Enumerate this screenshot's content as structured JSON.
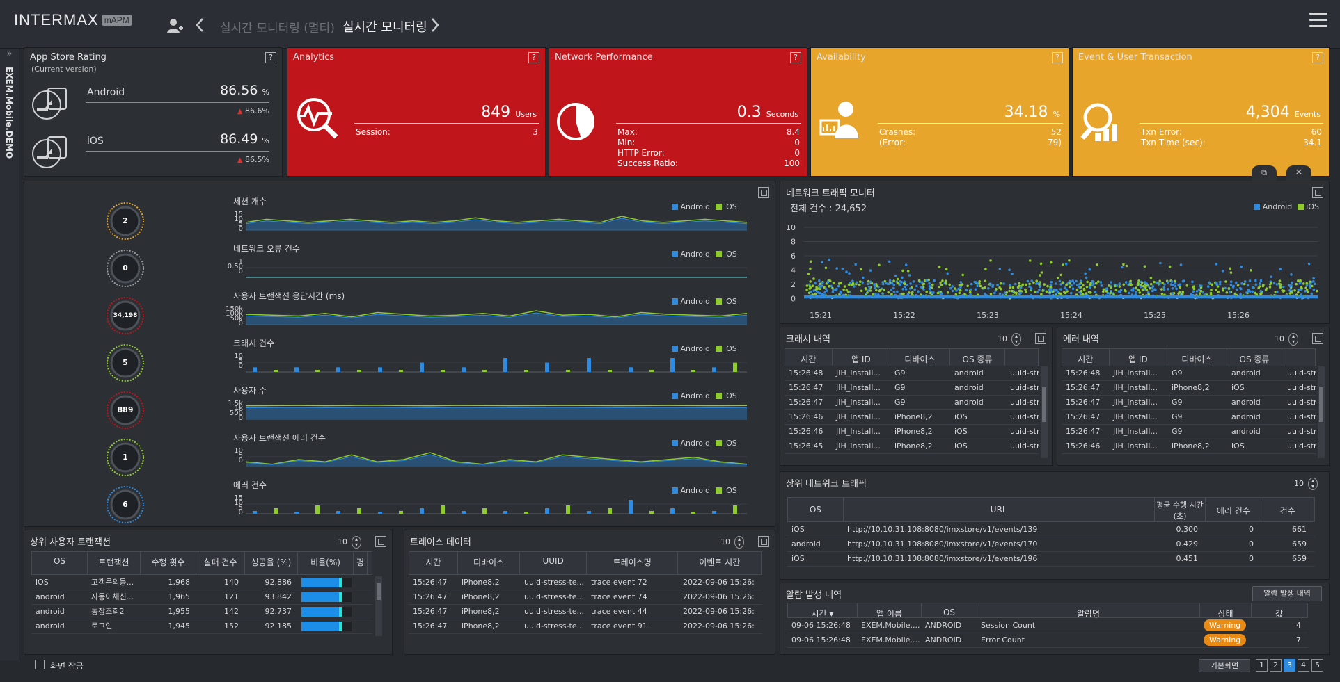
{
  "app": {
    "logo_text": "INTERMAX",
    "logo_badge": "mAPM",
    "prev_title": "실시간 모니터링 (멀티)",
    "current_title": "실시간 모니터링",
    "side_label": "EXEM.Mobile.DEMO"
  },
  "app_store": {
    "title": "App Store Rating",
    "subtitle": "(Current version)",
    "android": {
      "label": "Android",
      "value": "86.56",
      "unit": "%",
      "prev": "86.6%"
    },
    "ios": {
      "label": "iOS",
      "value": "86.49",
      "unit": "%",
      "prev": "86.5%"
    }
  },
  "analytics": {
    "title": "Analytics",
    "value": "849",
    "unit": "Users",
    "rows": [
      {
        "k": "Session:",
        "v": "3"
      }
    ]
  },
  "network_perf": {
    "title": "Network Performance",
    "value": "0.3",
    "unit": "Seconds",
    "rows": [
      {
        "k": "Max:",
        "v": "8.4"
      },
      {
        "k": "Min:",
        "v": "0"
      },
      {
        "k": "HTTP Error:",
        "v": "0"
      },
      {
        "k": "Success Ratio:",
        "v": "100"
      }
    ]
  },
  "availability": {
    "title": "Availability",
    "value": "34.18",
    "unit": "%",
    "rows": [
      {
        "k": "Crashes:",
        "v": "52"
      },
      {
        "k": "(Error:",
        "v": "79)"
      }
    ]
  },
  "event_txn": {
    "title": "Event & User Transaction",
    "value": "4,304",
    "unit": "Events",
    "rows": [
      {
        "k": "Txn Error:",
        "v": "60"
      },
      {
        "k": "Txn Time (sec):",
        "v": "34.1"
      }
    ]
  },
  "help_label": "?",
  "legend": {
    "android": "Android",
    "ios": "iOS"
  },
  "gauges": [
    "2",
    "0",
    "34,198",
    "5",
    "889",
    "1",
    "6"
  ],
  "colors": {
    "android": "#2f8bdf",
    "ios": "#8fcb2e",
    "red": "#c0151b",
    "yellow": "#e7a52b",
    "warning": "#e98a14"
  },
  "mini_charts": [
    {
      "title": "세션 개수",
      "ticks": [
        "15",
        "10",
        "5",
        "0"
      ]
    },
    {
      "title": "네트워크 오류 건수",
      "ticks": [
        "1",
        "0.50",
        "0"
      ]
    },
    {
      "title": "사용자 트랜잭션 응답시간 (ms)",
      "ticks": [
        "150k",
        "100k",
        "50k",
        "0"
      ]
    },
    {
      "title": "크래시 건수",
      "ticks": [
        "10",
        "5",
        "0"
      ]
    },
    {
      "title": "사용자 수",
      "ticks": [
        "1.5k",
        "1k",
        "500",
        "0"
      ]
    },
    {
      "title": "사용자 트랜잭션 에러 건수",
      "ticks": [
        "10",
        "5",
        "0"
      ]
    },
    {
      "title": "에러 건수",
      "ticks": [
        "15",
        "10",
        "5",
        "0"
      ]
    }
  ],
  "network_traffic": {
    "title": "네트워크 트래픽 모니터",
    "total": "전체 건수 : 24,652",
    "y_ticks": [
      "10",
      "8",
      "6",
      "4",
      "2",
      "0"
    ],
    "x_ticks": [
      "15:21",
      "15:22",
      "15:23",
      "15:24",
      "15:25",
      "15:26"
    ]
  },
  "crash": {
    "title": "크래시 내역",
    "page_size": "10",
    "headers": [
      "시간",
      "앱 ID",
      "디바이스",
      "OS 종류",
      ""
    ],
    "rows": [
      [
        "15:26:48",
        "JIH_Install...",
        "G9",
        "android",
        "uuid-str"
      ],
      [
        "15:26:47",
        "JIH_Install...",
        "G9",
        "android",
        "uuid-str"
      ],
      [
        "15:26:47",
        "JIH_Install...",
        "G9",
        "android",
        "uuid-str"
      ],
      [
        "15:26:46",
        "JIH_Install...",
        "iPhone8,2",
        "iOS",
        "uuid-str"
      ],
      [
        "15:26:46",
        "JIH_Install...",
        "iPhone8,2",
        "iOS",
        "uuid-str"
      ],
      [
        "15:26:45",
        "JIH_Install...",
        "iPhone8,2",
        "iOS",
        "uuid-str"
      ]
    ]
  },
  "error": {
    "title": "에러 내역",
    "page_size": "10",
    "headers": [
      "시간",
      "앱 ID",
      "디바이스",
      "OS 종류",
      ""
    ],
    "rows": [
      [
        "15:26:48",
        "JIH_Install...",
        "G9",
        "android",
        "uuid-str"
      ],
      [
        "15:26:47",
        "JIH_Install...",
        "iPhone8,2",
        "iOS",
        "uuid-str"
      ],
      [
        "15:26:47",
        "JIH_Install...",
        "G9",
        "android",
        "uuid-str"
      ],
      [
        "15:26:47",
        "JIH_Install...",
        "G9",
        "android",
        "uuid-str"
      ],
      [
        "15:26:47",
        "JIH_Install...",
        "G9",
        "android",
        "uuid-str"
      ],
      [
        "15:26:46",
        "JIH_Install...",
        "iPhone8,2",
        "iOS",
        "uuid-str"
      ]
    ]
  },
  "top_network": {
    "title": "상위 네트워크 트래픽",
    "page_size": "10",
    "headers": [
      "OS",
      "URL",
      "평균 수행 시간 (초)",
      "에러 건수",
      "건수"
    ],
    "rows": [
      [
        "iOS",
        "http://10.10.31.108:8080/imxstore/v1/events/139",
        "0.300",
        "0",
        "661"
      ],
      [
        "android",
        "http://10.10.31.108:8080/imxstore/v1/events/170",
        "0.429",
        "0",
        "659"
      ],
      [
        "iOS",
        "http://10.10.31.108:8080/imxstore/v1/events/196",
        "0.451",
        "0",
        "659"
      ]
    ]
  },
  "alarm": {
    "title": "알람 발생 내역",
    "button": "알람 발생 내역",
    "headers": [
      "시간 ▾",
      "앱 이름",
      "OS",
      "알람명",
      "상태",
      "값"
    ],
    "rows": [
      [
        "09-06 15:26:48",
        "EXEM.Mobile....",
        "ANDROID",
        "Session Count",
        "Warning",
        "4"
      ],
      [
        "09-06 15:26:48",
        "EXEM.Mobile....",
        "ANDROID",
        "Error Count",
        "Warning",
        "7"
      ]
    ]
  },
  "top_txn": {
    "title": "상위 사용자 트랜잭션",
    "page_size": "10",
    "headers": [
      "OS",
      "트랜잭션",
      "수행 횟수",
      "실패 건수",
      "성공율 (%)",
      "비율(%)",
      "평"
    ],
    "rows": [
      {
        "os": "iOS",
        "txn": "고객문의등...",
        "count": "1,968",
        "fail": "140",
        "rate": "92.886",
        "ratio": 0.8
      },
      {
        "os": "android",
        "txn": "자동이체신...",
        "count": "1,965",
        "fail": "121",
        "rate": "93.842",
        "ratio": 0.8
      },
      {
        "os": "android",
        "txn": "통장조회2",
        "count": "1,955",
        "fail": "142",
        "rate": "92.737",
        "ratio": 0.8
      },
      {
        "os": "android",
        "txn": "로그인",
        "count": "1,945",
        "fail": "152",
        "rate": "92.185",
        "ratio": 0.8
      }
    ]
  },
  "trace": {
    "title": "트레이스 데이터",
    "page_size": "10",
    "headers": [
      "시간",
      "디바이스",
      "UUID",
      "트레이스명",
      "이벤트 시간"
    ],
    "rows": [
      [
        "15:26:47",
        "iPhone8,2",
        "uuid-stress-te...",
        "trace event 72",
        "2022-09-06 15:26:"
      ],
      [
        "15:26:47",
        "iPhone8,2",
        "uuid-stress-te...",
        "trace event 74",
        "2022-09-06 15:26:"
      ],
      [
        "15:26:47",
        "iPhone8,2",
        "uuid-stress-te...",
        "trace event 44",
        "2022-09-06 15:26:"
      ],
      [
        "15:26:47",
        "iPhone8,2",
        "uuid-stress-te...",
        "trace event 91",
        "2022-09-06 15:26:"
      ]
    ]
  },
  "footer": {
    "check_label": "화면 잠금",
    "default_btn": "기본화면",
    "pages": [
      "1",
      "2",
      "3",
      "4",
      "5"
    ],
    "active_page": "3"
  }
}
